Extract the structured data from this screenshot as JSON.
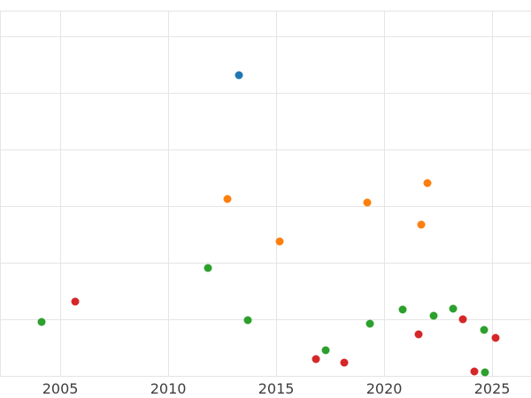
{
  "chart_data": {
    "type": "scatter",
    "title": "",
    "xlabel": "",
    "ylabel": "",
    "legend": "none",
    "grid": true,
    "xlim": [
      2002.21,
      2026.8
    ],
    "ylim": [
      -0.39,
      6.64
    ],
    "x_ticks": [
      2005,
      2010,
      2015,
      2020,
      2025
    ],
    "y_gridlines": [
      0,
      1,
      2,
      3,
      4,
      5,
      6,
      6.45
    ],
    "marker_size_px": 9,
    "series": [
      {
        "name": "series-blue",
        "color": "#1f77b4",
        "points": [
          {
            "x": 2013.28,
            "y": 5.31
          }
        ]
      },
      {
        "name": "series-orange",
        "color": "#ff7f0e",
        "points": [
          {
            "x": 2012.75,
            "y": 3.13
          },
          {
            "x": 2015.16,
            "y": 2.38
          },
          {
            "x": 2019.22,
            "y": 3.06
          },
          {
            "x": 2021.72,
            "y": 2.67
          },
          {
            "x": 2022.0,
            "y": 3.41
          }
        ]
      },
      {
        "name": "series-green",
        "color": "#2ca02c",
        "points": [
          {
            "x": 2004.14,
            "y": 0.95
          },
          {
            "x": 2011.84,
            "y": 1.91
          },
          {
            "x": 2013.69,
            "y": 0.98
          },
          {
            "x": 2017.3,
            "y": 0.45
          },
          {
            "x": 2019.34,
            "y": 0.92
          },
          {
            "x": 2020.86,
            "y": 1.17
          },
          {
            "x": 2022.3,
            "y": 1.06
          },
          {
            "x": 2023.2,
            "y": 1.19
          },
          {
            "x": 2024.63,
            "y": 0.81
          },
          {
            "x": 2024.67,
            "y": 0.06
          }
        ]
      },
      {
        "name": "series-red",
        "color": "#d62728",
        "points": [
          {
            "x": 2005.7,
            "y": 1.31
          },
          {
            "x": 2016.84,
            "y": 0.3
          },
          {
            "x": 2018.16,
            "y": 0.23
          },
          {
            "x": 2021.6,
            "y": 0.73
          },
          {
            "x": 2023.64,
            "y": 1.0
          },
          {
            "x": 2024.18,
            "y": 0.08
          },
          {
            "x": 2025.16,
            "y": 0.67
          }
        ]
      }
    ]
  },
  "styles": {
    "background": "#ffffff",
    "grid_color": "#e5e5e5",
    "tick_label_color": "#3d3d3d",
    "series_colors": {
      "blue": "#1f77b4",
      "orange": "#ff7f0e",
      "green": "#2ca02c",
      "red": "#d62728"
    }
  }
}
